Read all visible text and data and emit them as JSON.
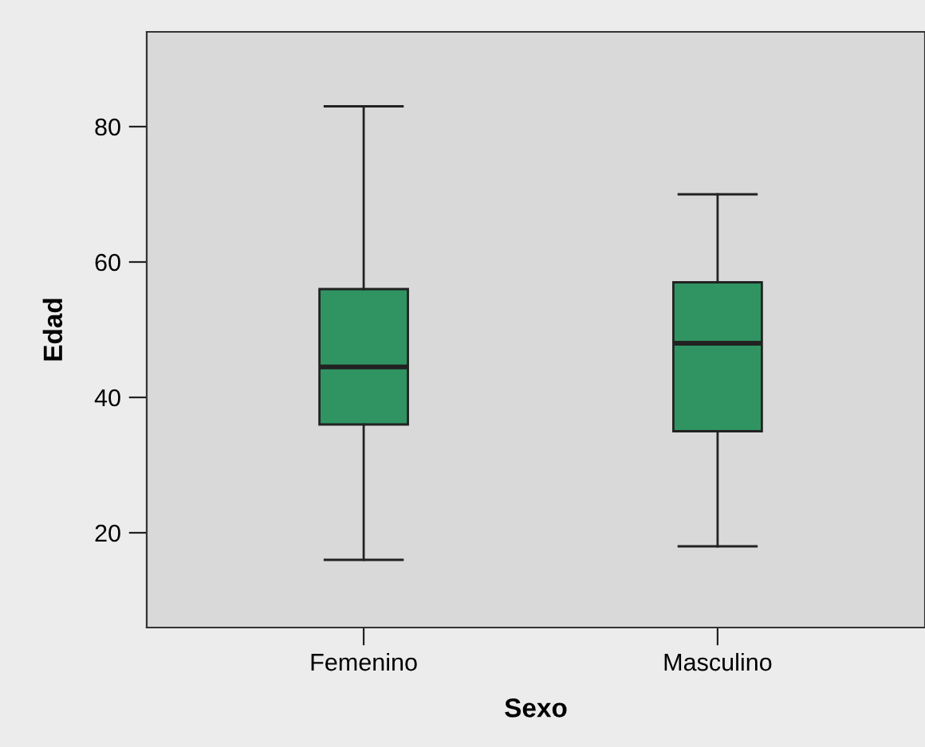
{
  "chart_data": {
    "type": "box",
    "xlabel": "Sexo",
    "ylabel": "Edad",
    "categories": [
      "Femenino",
      "Masculino"
    ],
    "color": "#2f9461",
    "boxes": [
      {
        "low": 16,
        "q1": 36,
        "median": 44.5,
        "q3": 56,
        "high": 83
      },
      {
        "low": 18,
        "q1": 35,
        "median": 48,
        "q3": 57,
        "high": 70
      }
    ],
    "ylim": [
      6,
      94
    ],
    "yticks": [
      20,
      40,
      60,
      80
    ],
    "grid": false,
    "legend": false
  }
}
